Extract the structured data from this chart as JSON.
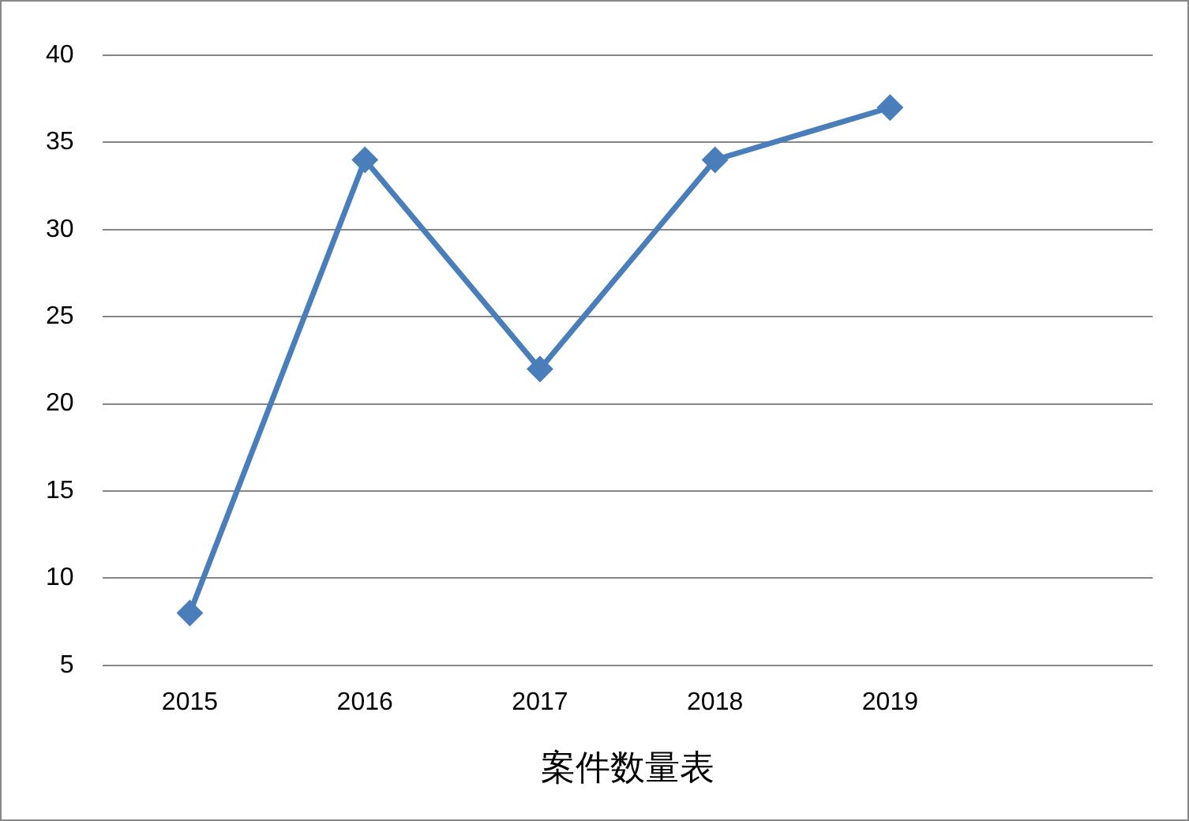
{
  "chart_data": {
    "type": "line",
    "xlabel": "案件数量表",
    "categories": [
      "2015",
      "2016",
      "2017",
      "2018",
      "2019",
      null
    ],
    "series": [
      {
        "color": "#4a7ebb",
        "values": [
          8,
          34,
          22,
          34,
          37,
          null
        ]
      }
    ],
    "ylim": [
      5,
      40
    ],
    "yticks": [
      5,
      10,
      15,
      20,
      25,
      30,
      35,
      40
    ],
    "grid": "y",
    "legend": false,
    "marker": "diamond",
    "line_style": "solid"
  }
}
